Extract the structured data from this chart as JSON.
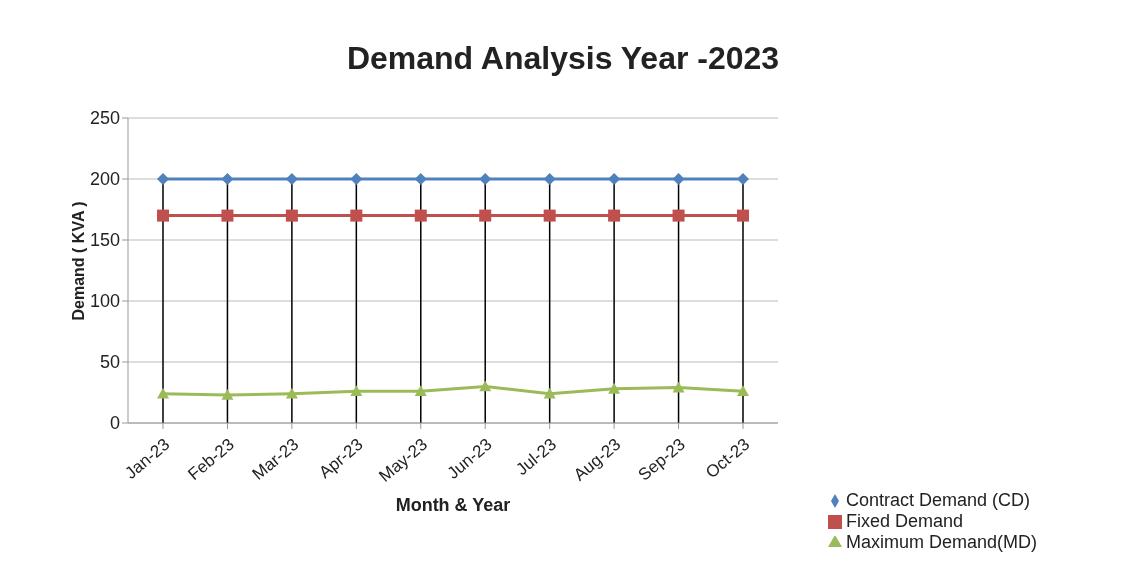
{
  "chart_data": {
    "type": "line",
    "title": "Demand Analysis Year -2023",
    "xlabel": "Month & Year",
    "ylabel": "Demand ( KVA )",
    "categories": [
      "Jan-23",
      "Feb-23",
      "Mar-23",
      "Apr-23",
      "May-23",
      "Jun-23",
      "Jul-23",
      "Aug-23",
      "Sep-23",
      "Oct-23"
    ],
    "series": [
      {
        "name": "Contract Demand (CD)",
        "color": "#4f81bd",
        "marker": "diamond",
        "values": [
          200,
          200,
          200,
          200,
          200,
          200,
          200,
          200,
          200,
          200
        ]
      },
      {
        "name": "Fixed Demand",
        "color": "#c0504d",
        "marker": "square",
        "values": [
          170,
          170,
          170,
          170,
          170,
          170,
          170,
          170,
          170,
          170
        ]
      },
      {
        "name": "Maximum Demand(MD)",
        "color": "#9bbb59",
        "marker": "triangle",
        "values": [
          24,
          23,
          24,
          26,
          26,
          30,
          24,
          28,
          29,
          26
        ]
      }
    ],
    "ylim": [
      0,
      250
    ],
    "yticks": [
      0,
      50,
      100,
      150,
      200,
      250
    ],
    "grid": "y",
    "legend": "bottom right",
    "ref_lines": [
      {
        "axis": "x",
        "value": "Jan-23",
        "color": "#000000"
      },
      {
        "axis": "x",
        "value": "Feb-23",
        "color": "#000000"
      },
      {
        "axis": "x",
        "value": "Mar-23",
        "color": "#000000"
      },
      {
        "axis": "x",
        "value": "Apr-23",
        "color": "#000000"
      },
      {
        "axis": "x",
        "value": "May-23",
        "color": "#000000"
      },
      {
        "axis": "x",
        "value": "Jun-23",
        "color": "#000000"
      },
      {
        "axis": "x",
        "value": "Jul-23",
        "color": "#000000"
      },
      {
        "axis": "x",
        "value": "Aug-23",
        "color": "#000000"
      },
      {
        "axis": "x",
        "value": "Sep-23",
        "color": "#000000"
      },
      {
        "axis": "x",
        "value": "Oct-23",
        "color": "#000000"
      }
    ]
  }
}
